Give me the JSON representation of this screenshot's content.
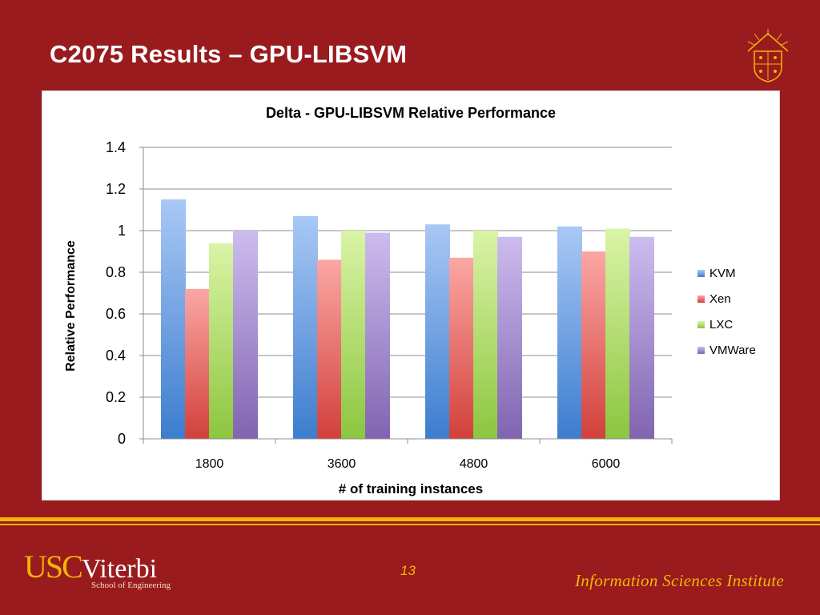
{
  "slide": {
    "title": "C2075 Results – GPU-LIBSVM",
    "page_number": "13",
    "logo_usc": "USC",
    "logo_viterbi": "Viterbi",
    "logo_school": "School of Engineering",
    "institute": "Information Sciences Institute"
  },
  "colors": {
    "background": "#991b1e",
    "accent_gold": "#f2b705"
  },
  "chart_data": {
    "type": "bar",
    "title": "Delta - GPU-LIBSVM Relative Performance",
    "xlabel": "# of training instances",
    "ylabel": "Relative Performance",
    "categories": [
      "1800",
      "3600",
      "4800",
      "6000"
    ],
    "ylim": [
      0,
      1.4
    ],
    "yticks": [
      "0",
      "0.2",
      "0.4",
      "0.6",
      "0.8",
      "1",
      "1.2",
      "1.4"
    ],
    "grid": true,
    "legend_position": "right",
    "series": [
      {
        "name": "KVM",
        "values": [
          1.15,
          1.07,
          1.03,
          1.02
        ],
        "color_top": "#a9c8f5",
        "color_bottom": "#3c7dce",
        "legend_color": "#4f81bd"
      },
      {
        "name": "Xen",
        "values": [
          0.72,
          0.86,
          0.87,
          0.9
        ],
        "color_top": "#fba7a4",
        "color_bottom": "#d2403b",
        "legend_color": "#d9423e"
      },
      {
        "name": "LXC",
        "values": [
          0.94,
          1.0,
          1.0,
          1.01
        ],
        "color_top": "#daf4a6",
        "color_bottom": "#8cc63f",
        "legend_color": "#9bbb59"
      },
      {
        "name": "VMWare",
        "values": [
          1.0,
          0.99,
          0.97,
          0.97
        ],
        "color_top": "#cdbcef",
        "color_bottom": "#8064b0",
        "legend_color": "#8064a2"
      }
    ]
  }
}
